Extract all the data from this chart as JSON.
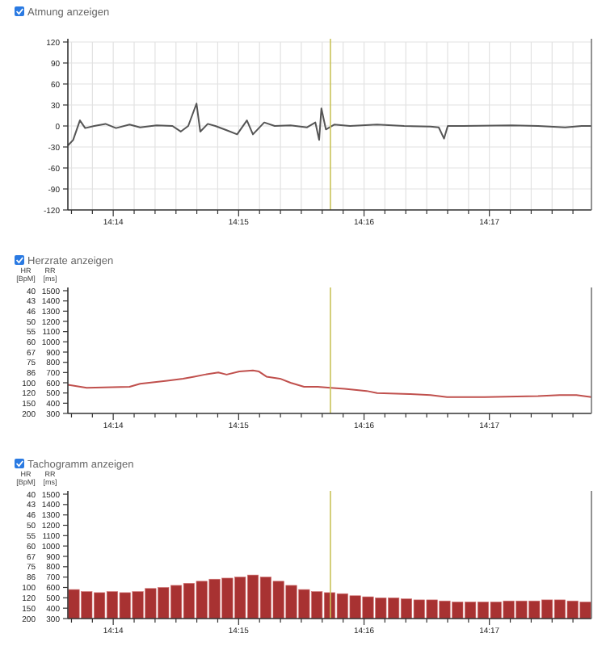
{
  "chart_data": [
    {
      "type": "line",
      "title": "Atmung anzeigen",
      "xlim": [
        14.2273,
        14.2969
      ],
      "ylim": [
        -120,
        120
      ],
      "yticks": [
        -120,
        -90,
        -60,
        -30,
        0,
        30,
        60,
        90,
        120
      ],
      "xticks": [
        {
          "value": 14.22778,
          "label": null
        },
        {
          "value": 14.23056,
          "label": null
        },
        {
          "value": 14.23333,
          "label": "14:14"
        },
        {
          "value": 14.23611,
          "label": null
        },
        {
          "value": 14.23889,
          "label": null
        },
        {
          "value": 14.24167,
          "label": null
        },
        {
          "value": 14.24444,
          "label": null
        },
        {
          "value": 14.24722,
          "label": null
        },
        {
          "value": 14.25,
          "label": "14:15"
        },
        {
          "value": 14.25278,
          "label": null
        },
        {
          "value": 14.25556,
          "label": null
        },
        {
          "value": 14.25833,
          "label": null
        },
        {
          "value": 14.26111,
          "label": null
        },
        {
          "value": 14.26389,
          "label": null
        },
        {
          "value": 14.26667,
          "label": "14:16"
        },
        {
          "value": 14.26944,
          "label": null
        },
        {
          "value": 14.27222,
          "label": null
        },
        {
          "value": 14.275,
          "label": null
        },
        {
          "value": 14.27778,
          "label": null
        },
        {
          "value": 14.28056,
          "label": null
        },
        {
          "value": 14.28333,
          "label": "14:17"
        },
        {
          "value": 14.28611,
          "label": null
        },
        {
          "value": 14.28889,
          "label": null
        },
        {
          "value": 14.29167,
          "label": null
        },
        {
          "value": 14.29444,
          "label": null
        }
      ],
      "grid": true,
      "ref_lines": [
        {
          "axis": "x",
          "value": 14.2622,
          "color": "#c9c35a"
        }
      ],
      "series": [
        {
          "color": "#555555",
          "x": [
            14.2273,
            14.228,
            14.2289,
            14.2296,
            14.2308,
            14.2323,
            14.2337,
            14.2355,
            14.2369,
            14.2391,
            14.2412,
            14.2423,
            14.2433,
            14.2444,
            14.2449,
            14.2459,
            14.2469,
            14.2484,
            14.2498,
            14.2511,
            14.2519,
            14.2534,
            14.2548,
            14.2569,
            14.2591,
            14.2602,
            14.2607,
            14.261,
            14.2616,
            14.2627,
            14.2648,
            14.2684,
            14.272,
            14.2755,
            14.2766,
            14.2773,
            14.2778,
            14.2798,
            14.2863,
            14.2898,
            14.2934,
            14.2956,
            14.2969
          ],
          "values": [
            -28,
            -20,
            8,
            -3,
            0,
            3,
            -3,
            2,
            -2,
            1,
            0,
            -8,
            0,
            32,
            -8,
            3,
            0,
            -6,
            -12,
            8,
            -12,
            5,
            0,
            1,
            -2,
            5,
            -20,
            25,
            -5,
            2,
            0,
            2,
            0,
            -1,
            -2,
            -18,
            0,
            0,
            1,
            0,
            -2,
            0,
            0
          ]
        }
      ]
    },
    {
      "type": "line",
      "title": "Herzrate anzeigen",
      "ylabel": "RR [ms]",
      "xlim": [
        14.2273,
        14.2969
      ],
      "ylim": [
        300,
        1500
      ],
      "yticks": [
        300,
        400,
        500,
        600,
        700,
        800,
        900,
        1000,
        1100,
        1200,
        1300,
        1400,
        1500
      ],
      "annotations": [
        "HR [BpM]",
        "200",
        "150",
        "120",
        "100",
        "86",
        "75",
        "67",
        "60",
        "55",
        "50",
        "46",
        "43",
        "40"
      ],
      "xticks": [
        {
          "value": 14.22778,
          "label": null
        },
        {
          "value": 14.23056,
          "label": null
        },
        {
          "value": 14.23333,
          "label": "14:14"
        },
        {
          "value": 14.23611,
          "label": null
        },
        {
          "value": 14.23889,
          "label": null
        },
        {
          "value": 14.24167,
          "label": null
        },
        {
          "value": 14.24444,
          "label": null
        },
        {
          "value": 14.24722,
          "label": null
        },
        {
          "value": 14.25,
          "label": "14:15"
        },
        {
          "value": 14.25278,
          "label": null
        },
        {
          "value": 14.25556,
          "label": null
        },
        {
          "value": 14.25833,
          "label": null
        },
        {
          "value": 14.26111,
          "label": null
        },
        {
          "value": 14.26389,
          "label": null
        },
        {
          "value": 14.26667,
          "label": "14:16"
        },
        {
          "value": 14.26944,
          "label": null
        },
        {
          "value": 14.27222,
          "label": null
        },
        {
          "value": 14.275,
          "label": null
        },
        {
          "value": 14.27778,
          "label": null
        },
        {
          "value": 14.28056,
          "label": null
        },
        {
          "value": 14.28333,
          "label": "14:17"
        },
        {
          "value": 14.28611,
          "label": null
        },
        {
          "value": 14.28889,
          "label": null
        },
        {
          "value": 14.29167,
          "label": null
        },
        {
          "value": 14.29444,
          "label": null
        }
      ],
      "ref_lines": [
        {
          "axis": "x",
          "value": 14.2622,
          "color": "#c9c35a"
        }
      ],
      "series": [
        {
          "color": "#c0504d",
          "x": [
            14.2273,
            14.2298,
            14.2355,
            14.2369,
            14.2405,
            14.2426,
            14.2441,
            14.2455,
            14.2473,
            14.2484,
            14.2501,
            14.2519,
            14.2527,
            14.2537,
            14.2555,
            14.2569,
            14.2587,
            14.2605,
            14.2622,
            14.2641,
            14.267,
            14.2684,
            14.2727,
            14.2755,
            14.2777,
            14.2827,
            14.2898,
            14.2927,
            14.2949,
            14.2969
          ],
          "values": [
            580,
            550,
            560,
            590,
            620,
            640,
            660,
            680,
            700,
            680,
            710,
            720,
            710,
            660,
            640,
            600,
            560,
            560,
            550,
            540,
            520,
            500,
            490,
            480,
            460,
            460,
            470,
            480,
            480,
            460
          ]
        }
      ]
    },
    {
      "type": "bar",
      "title": "Tachogramm anzeigen",
      "ylabel": "RR [ms]",
      "xlim": [
        14.2273,
        14.2969
      ],
      "ylim": [
        300,
        1500
      ],
      "yticks": [
        300,
        400,
        500,
        600,
        700,
        800,
        900,
        1000,
        1100,
        1200,
        1300,
        1400,
        1500
      ],
      "annotations": [
        "HR [BpM]",
        "200",
        "150",
        "120",
        "100",
        "86",
        "75",
        "67",
        "60",
        "55",
        "50",
        "46",
        "43",
        "40"
      ],
      "xticks": [
        {
          "value": 14.22778,
          "label": null
        },
        {
          "value": 14.23056,
          "label": null
        },
        {
          "value": 14.23333,
          "label": "14:14"
        },
        {
          "value": 14.23611,
          "label": null
        },
        {
          "value": 14.23889,
          "label": null
        },
        {
          "value": 14.24167,
          "label": null
        },
        {
          "value": 14.24444,
          "label": null
        },
        {
          "value": 14.24722,
          "label": null
        },
        {
          "value": 14.25,
          "label": "14:15"
        },
        {
          "value": 14.25278,
          "label": null
        },
        {
          "value": 14.25556,
          "label": null
        },
        {
          "value": 14.25833,
          "label": null
        },
        {
          "value": 14.26111,
          "label": null
        },
        {
          "value": 14.26389,
          "label": null
        },
        {
          "value": 14.26667,
          "label": "14:16"
        },
        {
          "value": 14.26944,
          "label": null
        },
        {
          "value": 14.27222,
          "label": null
        },
        {
          "value": 14.275,
          "label": null
        },
        {
          "value": 14.27778,
          "label": null
        },
        {
          "value": 14.28056,
          "label": null
        },
        {
          "value": 14.28333,
          "label": "14:17"
        },
        {
          "value": 14.28611,
          "label": null
        },
        {
          "value": 14.28889,
          "label": null
        },
        {
          "value": 14.29167,
          "label": null
        },
        {
          "value": 14.29444,
          "label": null
        }
      ],
      "ref_lines": [
        {
          "axis": "x",
          "value": 14.2622,
          "color": "#c9c35a"
        }
      ],
      "series": [
        {
          "color": "#a83232",
          "x": [
            14.2281,
            14.2298,
            14.2315,
            14.2332,
            14.2349,
            14.2366,
            14.2383,
            14.24,
            14.2417,
            14.2434,
            14.2451,
            14.2468,
            14.2485,
            14.2502,
            14.2519,
            14.2536,
            14.2553,
            14.257,
            14.2587,
            14.2604,
            14.2621,
            14.2638,
            14.2655,
            14.2672,
            14.2689,
            14.2706,
            14.2723,
            14.274,
            14.2757,
            14.2774,
            14.2791,
            14.2808,
            14.2825,
            14.2842,
            14.2859,
            14.2876,
            14.2893,
            14.291,
            14.2927,
            14.2944,
            14.2961
          ],
          "values": [
            580,
            560,
            550,
            560,
            550,
            560,
            590,
            600,
            620,
            640,
            660,
            680,
            690,
            700,
            720,
            700,
            660,
            620,
            580,
            560,
            550,
            540,
            520,
            510,
            500,
            500,
            490,
            480,
            480,
            470,
            460,
            460,
            460,
            460,
            470,
            470,
            470,
            480,
            480,
            470,
            460
          ]
        }
      ]
    }
  ]
}
